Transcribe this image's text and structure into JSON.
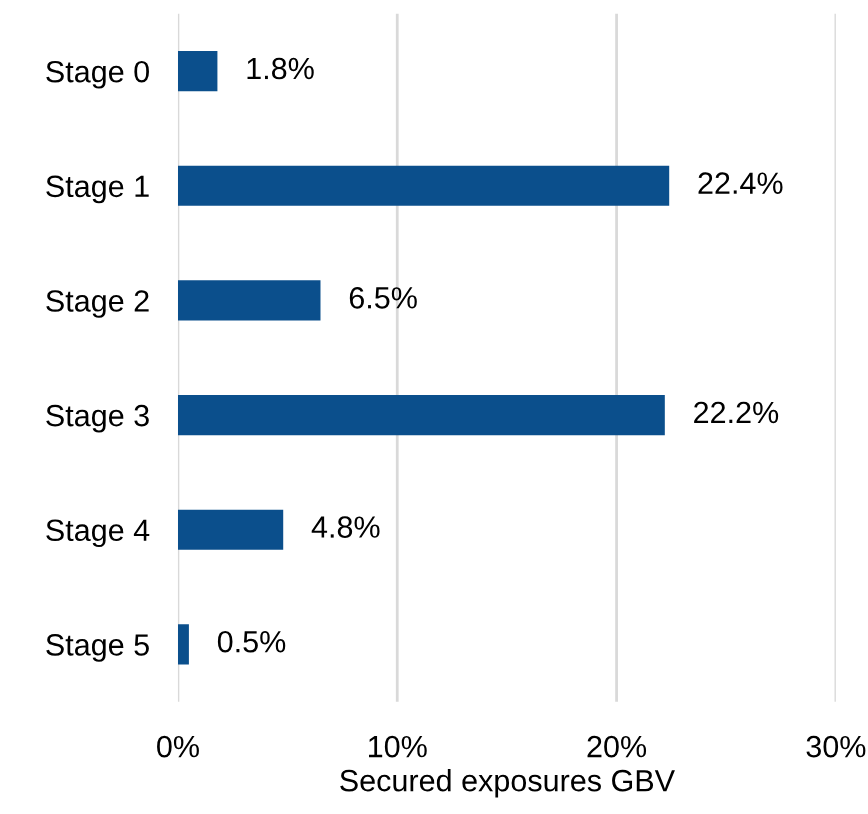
{
  "chart_data": {
    "type": "bar",
    "orientation": "horizontal",
    "xlabel": "Secured exposures GBV",
    "categories": [
      "Stage 0",
      "Stage 1",
      "Stage 2",
      "Stage 3",
      "Stage 4",
      "Stage 5"
    ],
    "values": [
      1.8,
      22.4,
      6.5,
      22.2,
      4.8,
      0.5
    ],
    "value_labels": [
      "1.8%",
      "22.4%",
      "6.5%",
      "22.2%",
      "4.8%",
      "0.5%"
    ],
    "color": "#0b4f8c",
    "xlim": [
      0,
      30
    ],
    "xticks": [
      {
        "value": 0,
        "label": "0%"
      },
      {
        "value": 10,
        "label": "10%"
      },
      {
        "value": 20,
        "label": "20%"
      },
      {
        "value": 30,
        "label": "30%"
      }
    ],
    "grid": "x"
  }
}
